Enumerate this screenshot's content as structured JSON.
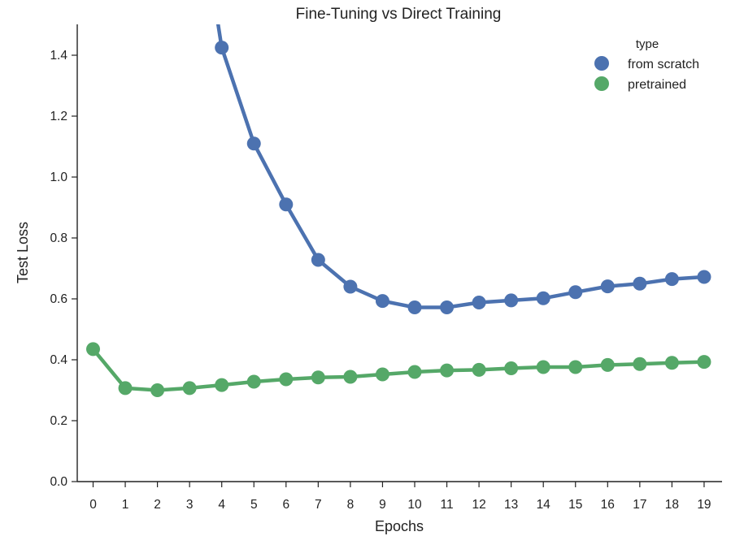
{
  "chart_data": {
    "type": "line",
    "title": "Fine-Tuning vs Direct Training",
    "xlabel": "Epochs",
    "ylabel": "Test Loss",
    "categories": [
      "0",
      "1",
      "2",
      "3",
      "4",
      "5",
      "6",
      "7",
      "8",
      "9",
      "10",
      "11",
      "12",
      "13",
      "14",
      "15",
      "16",
      "17",
      "18",
      "19"
    ],
    "ylim": [
      0,
      1.5
    ],
    "yticks": [
      "0.0",
      "0.2",
      "0.4",
      "0.6",
      "0.8",
      "1.0",
      "1.2",
      "1.4"
    ],
    "grid": false,
    "legend": {
      "title": "type",
      "placement": "top-right"
    },
    "series": [
      {
        "name": "from scratch",
        "color": "#4c72b0",
        "values": [
          null,
          null,
          null,
          2.1,
          1.425,
          1.11,
          0.91,
          0.728,
          0.64,
          0.593,
          0.572,
          0.572,
          0.588,
          0.595,
          0.602,
          0.622,
          0.641,
          0.65,
          0.665,
          0.672
        ]
      },
      {
        "name": "pretrained",
        "color": "#55a868",
        "values": [
          0.435,
          0.307,
          0.3,
          0.307,
          0.317,
          0.328,
          0.336,
          0.342,
          0.344,
          0.352,
          0.36,
          0.365,
          0.367,
          0.372,
          0.376,
          0.376,
          0.383,
          0.386,
          0.39,
          0.393
        ]
      }
    ]
  }
}
